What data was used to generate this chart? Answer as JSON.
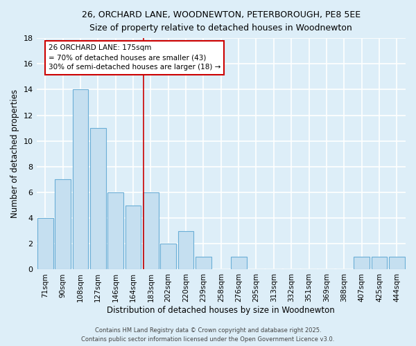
{
  "title_line1": "26, ORCHARD LANE, WOODNEWTON, PETERBOROUGH, PE8 5EE",
  "title_line2": "Size of property relative to detached houses in Woodnewton",
  "xlabel": "Distribution of detached houses by size in Woodnewton",
  "ylabel": "Number of detached properties",
  "categories": [
    "71sqm",
    "90sqm",
    "108sqm",
    "127sqm",
    "146sqm",
    "164sqm",
    "183sqm",
    "202sqm",
    "220sqm",
    "239sqm",
    "258sqm",
    "276sqm",
    "295sqm",
    "313sqm",
    "332sqm",
    "351sqm",
    "369sqm",
    "388sqm",
    "407sqm",
    "425sqm",
    "444sqm"
  ],
  "values": [
    4,
    7,
    14,
    11,
    6,
    5,
    6,
    2,
    3,
    1,
    0,
    1,
    0,
    0,
    0,
    0,
    0,
    0,
    1,
    1,
    1
  ],
  "bar_color": "#c5dff0",
  "bar_edge_color": "#6aaed6",
  "highlight_line_color": "#cc0000",
  "annotation_line1": "26 ORCHARD LANE: 175sqm",
  "annotation_line2": "= 70% of detached houses are smaller (43)",
  "annotation_line3": "30% of semi-detached houses are larger (18) →",
  "annotation_box_color": "white",
  "annotation_box_edge_color": "#cc0000",
  "ylim": [
    0,
    18
  ],
  "yticks": [
    0,
    2,
    4,
    6,
    8,
    10,
    12,
    14,
    16,
    18
  ],
  "background_color": "#ddeef8",
  "grid_color": "white",
  "footer_line1": "Contains HM Land Registry data © Crown copyright and database right 2025.",
  "footer_line2": "Contains public sector information licensed under the Open Government Licence v3.0."
}
